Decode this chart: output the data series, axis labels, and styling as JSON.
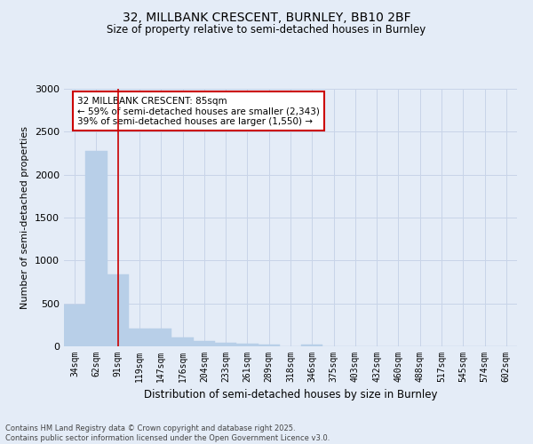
{
  "title_line1": "32, MILLBANK CRESCENT, BURNLEY, BB10 2BF",
  "title_line2": "Size of property relative to semi-detached houses in Burnley",
  "xlabel": "Distribution of semi-detached houses by size in Burnley",
  "ylabel": "Number of semi-detached properties",
  "categories": [
    "34sqm",
    "62sqm",
    "91sqm",
    "119sqm",
    "147sqm",
    "176sqm",
    "204sqm",
    "233sqm",
    "261sqm",
    "289sqm",
    "318sqm",
    "346sqm",
    "375sqm",
    "403sqm",
    "432sqm",
    "460sqm",
    "488sqm",
    "517sqm",
    "545sqm",
    "574sqm",
    "602sqm"
  ],
  "values": [
    490,
    2280,
    840,
    205,
    205,
    100,
    65,
    45,
    30,
    25,
    0,
    25,
    0,
    0,
    0,
    0,
    0,
    0,
    0,
    0,
    0
  ],
  "bar_color": "#b8cfe8",
  "bar_edge_color": "#b8cfe8",
  "vline_x_index": 2,
  "vline_color": "#cc0000",
  "annotation_title": "32 MILLBANK CRESCENT: 85sqm",
  "annotation_line2": "← 59% of semi-detached houses are smaller (2,343)",
  "annotation_line3": "39% of semi-detached houses are larger (1,550) →",
  "annotation_box_color": "#ffffff",
  "annotation_box_edge": "#cc0000",
  "ylim": [
    0,
    3000
  ],
  "yticks": [
    0,
    500,
    1000,
    1500,
    2000,
    2500,
    3000
  ],
  "grid_color": "#c8d4e8",
  "background_color": "#e4ecf7",
  "footer_line1": "Contains HM Land Registry data © Crown copyright and database right 2025.",
  "footer_line2": "Contains public sector information licensed under the Open Government Licence v3.0."
}
